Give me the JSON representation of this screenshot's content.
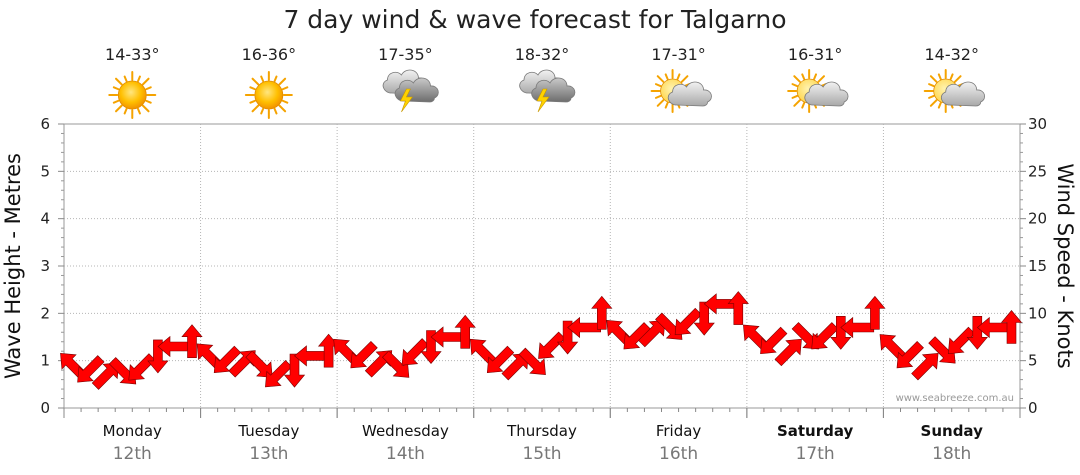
{
  "chart_data": {
    "type": "line",
    "title": "7 day wind & wave forecast for Talgarno",
    "left_axis": {
      "label": "Wave Height - Metres",
      "min": 0,
      "max": 6,
      "ticks": [
        "0",
        "1",
        "2",
        "3",
        "4",
        "5",
        "6"
      ]
    },
    "right_axis": {
      "label": "Wind Speed - Knots",
      "min": 0,
      "max": 30,
      "ticks": [
        "0",
        "5",
        "10",
        "15",
        "20",
        "25",
        "30"
      ]
    },
    "grid": true,
    "days": [
      {
        "name": "Monday",
        "date": "12th",
        "temp": "14-33°",
        "icon": "sunny-icon",
        "bold": false
      },
      {
        "name": "Tuesday",
        "date": "13th",
        "temp": "16-36°",
        "icon": "sunny-icon",
        "bold": false
      },
      {
        "name": "Wednesday",
        "date": "14th",
        "temp": "17-35°",
        "icon": "thunderstorm-icon",
        "bold": false
      },
      {
        "name": "Thursday",
        "date": "15th",
        "temp": "18-32°",
        "icon": "thunderstorm-icon",
        "bold": false
      },
      {
        "name": "Friday",
        "date": "16th",
        "temp": "17-31°",
        "icon": "partly-cloudy-icon",
        "bold": false
      },
      {
        "name": "Saturday",
        "date": "17th",
        "temp": "16-31°",
        "icon": "partly-cloudy-icon",
        "bold": true
      },
      {
        "name": "Sunday",
        "date": "18th",
        "temp": "14-32°",
        "icon": "partly-cloudy-icon",
        "bold": true
      }
    ],
    "series": [
      {
        "name": "Wind Speed",
        "axis": "right",
        "units": "knots",
        "points_per_day": 8,
        "values": [
          4.5,
          4.0,
          3.5,
          3.8,
          4.2,
          5.5,
          6.5,
          7.0,
          5.5,
          5.0,
          4.8,
          4.5,
          3.5,
          4.0,
          5.5,
          6.0,
          6.0,
          5.5,
          4.8,
          4.5,
          5.8,
          6.5,
          7.5,
          8.0,
          6.0,
          5.0,
          4.5,
          4.8,
          6.5,
          7.5,
          8.5,
          10.0,
          8.0,
          7.5,
          8.0,
          8.5,
          9.0,
          9.5,
          11.0,
          10.5,
          7.5,
          7.0,
          6.0,
          7.5,
          7.5,
          8.0,
          8.5,
          10.0,
          6.5,
          5.5,
          4.5,
          6.0,
          7.0,
          8.0,
          8.5,
          8.5
        ],
        "direction_deg": [
          225,
          135,
          315,
          45,
          135,
          90,
          180,
          270,
          225,
          135,
          315,
          45,
          135,
          90,
          180,
          270,
          225,
          135,
          315,
          45,
          135,
          90,
          180,
          270,
          225,
          135,
          315,
          45,
          135,
          90,
          180,
          270,
          225,
          135,
          315,
          45,
          135,
          90,
          180,
          270,
          225,
          135,
          315,
          45,
          135,
          90,
          180,
          270,
          225,
          135,
          315,
          45,
          135,
          90,
          180,
          270
        ],
        "color": "#ff0000"
      }
    ],
    "watermark": "www.seabreeze.com.au"
  }
}
